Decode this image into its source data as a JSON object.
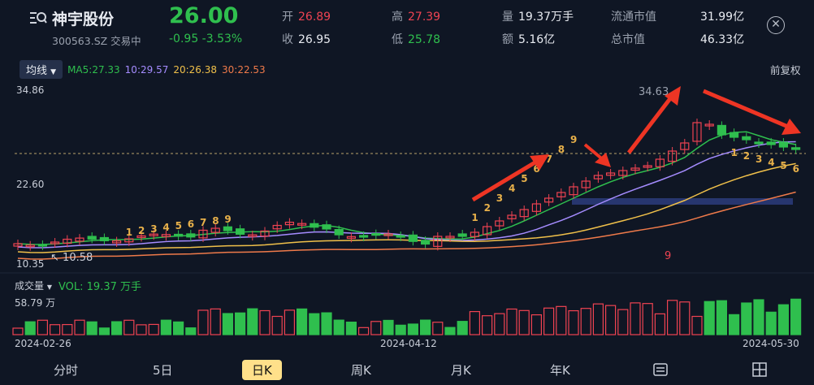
{
  "stock": {
    "name": "神宇股份",
    "code_status": "300563.SZ 交易中",
    "price": "26.00",
    "change": "-0.95 -3.53%"
  },
  "quote": {
    "open_label": "开",
    "open": "26.89",
    "close_label": "收",
    "close": "26.95",
    "high_label": "高",
    "high": "27.39",
    "low_label": "低",
    "low": "25.78",
    "volume_label": "量",
    "volume": "19.37万手",
    "amount_label": "额",
    "amount": "5.16亿",
    "float_cap_label": "流通市值",
    "float_cap": "31.99亿",
    "total_cap_label": "总市值",
    "total_cap": "46.33亿"
  },
  "ma_selector": "均线",
  "ma_legend": {
    "ma5": "MA5:27.33",
    "ma10": "10:29.57",
    "ma20": "20:26.38",
    "ma30": "30:22.53"
  },
  "adjust_label": "前复权",
  "axis": {
    "y_top": "34.86",
    "y_mid": "22.60",
    "y_bottom": "10.35",
    "low_marker": "10.58",
    "high_marker": "34.63",
    "vol_max": "58.79 万",
    "dates": [
      "2024-02-26",
      "2024-04-12",
      "2024-05-30"
    ]
  },
  "volume_header": {
    "selector": "成交量",
    "value": "VOL: 19.37 万手"
  },
  "seq_labels": {
    "run1": [
      "1",
      "2",
      "3",
      "4",
      "5",
      "6",
      "7",
      "8",
      "9"
    ],
    "run2": [
      "1",
      "2",
      "3",
      "4",
      "5",
      "6",
      "7",
      "8",
      "9"
    ],
    "run3": [
      "1",
      "2",
      "3",
      "4",
      "5",
      "6"
    ],
    "misc_nine": "9"
  },
  "tabs": [
    "分时",
    "5日",
    "日K",
    "周K",
    "月K",
    "年K"
  ],
  "active_tab": "日K",
  "colors": {
    "up": "#ef4352",
    "down": "#2fbf4e",
    "ma5": "#2fbf4e",
    "ma10": "#a58cff",
    "ma20": "#f0c04a",
    "ma30": "#ef7a4a",
    "arrow": "#ee3524",
    "seq": "#e7b04a"
  },
  "icons": {
    "logo": "search-list-icon",
    "close": "close-circle-icon",
    "dropdown": "triangle-down-icon",
    "settings": "settings-sliders-icon",
    "grid": "grid-icon"
  }
}
